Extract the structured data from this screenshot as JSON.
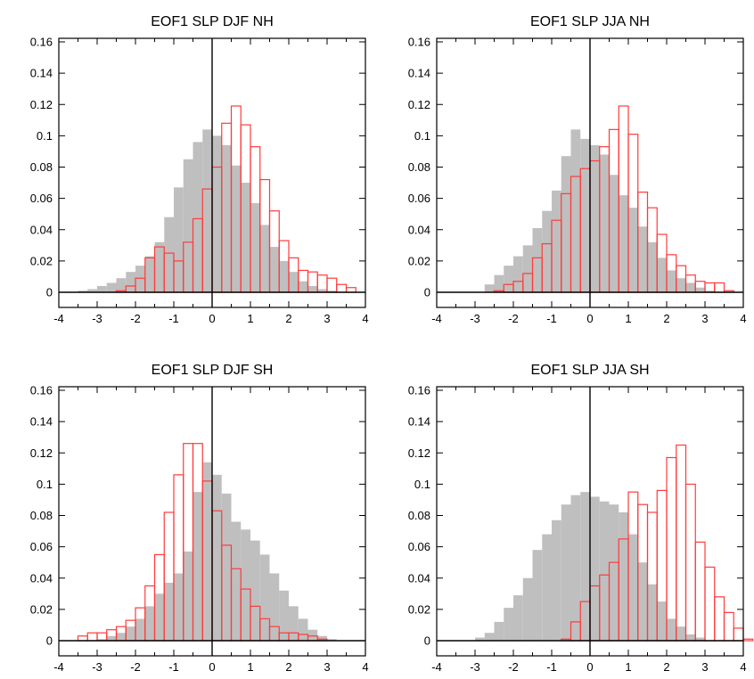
{
  "colors": {
    "shaded": "#bfbfbf",
    "outline": "#ff3b3b",
    "axis": "#000000"
  },
  "chart_data": [
    {
      "type": "bar",
      "title": "EOF1 SLP DJF NH",
      "xlim": [
        -4,
        4
      ],
      "ylim": [
        0,
        0.16
      ],
      "xticks": [
        -4,
        -3,
        -2,
        -1,
        0,
        1,
        2,
        3,
        4
      ],
      "yticks": [
        0,
        0.02,
        0.04,
        0.06,
        0.08,
        0.1,
        0.12,
        0.14,
        0.16
      ],
      "bin_width": 0.25,
      "series": [
        {
          "style": "filled-gray",
          "bins": [
            [
              -3.5,
              0.001
            ],
            [
              -3.25,
              0.002
            ],
            [
              -3.0,
              0.004
            ],
            [
              -2.75,
              0.006
            ],
            [
              -2.5,
              0.009
            ],
            [
              -2.25,
              0.013
            ],
            [
              -2.0,
              0.017
            ],
            [
              -1.75,
              0.023
            ],
            [
              -1.5,
              0.032
            ],
            [
              -1.25,
              0.048
            ],
            [
              -1.0,
              0.067
            ],
            [
              -0.75,
              0.085
            ],
            [
              -0.5,
              0.096
            ],
            [
              -0.25,
              0.104
            ],
            [
              0.0,
              0.1
            ],
            [
              0.25,
              0.094
            ],
            [
              0.5,
              0.081
            ],
            [
              0.75,
              0.07
            ],
            [
              1.0,
              0.057
            ],
            [
              1.25,
              0.043
            ],
            [
              1.5,
              0.029
            ],
            [
              1.75,
              0.02
            ],
            [
              2.0,
              0.013
            ],
            [
              2.25,
              0.007
            ],
            [
              2.5,
              0.004
            ],
            [
              2.75,
              0.002
            ],
            [
              3.0,
              0.001
            ]
          ]
        },
        {
          "style": "outline-red",
          "bins": [
            [
              -2.5,
              0.001
            ],
            [
              -2.25,
              0.004
            ],
            [
              -2.0,
              0.009
            ],
            [
              -1.75,
              0.022
            ],
            [
              -1.5,
              0.029
            ],
            [
              -1.25,
              0.025
            ],
            [
              -1.0,
              0.02
            ],
            [
              -0.75,
              0.032
            ],
            [
              -0.5,
              0.047
            ],
            [
              -0.25,
              0.066
            ],
            [
              0.0,
              0.08
            ],
            [
              0.25,
              0.108
            ],
            [
              0.5,
              0.119
            ],
            [
              0.75,
              0.107
            ],
            [
              1.0,
              0.093
            ],
            [
              1.25,
              0.072
            ],
            [
              1.5,
              0.052
            ],
            [
              1.75,
              0.033
            ],
            [
              2.0,
              0.022
            ],
            [
              2.25,
              0.014
            ],
            [
              2.5,
              0.013
            ],
            [
              2.75,
              0.011
            ],
            [
              3.0,
              0.009
            ],
            [
              3.25,
              0.005
            ],
            [
              3.5,
              0.003
            ]
          ]
        }
      ]
    },
    {
      "type": "bar",
      "title": "EOF1 SLP JJA NH",
      "xlim": [
        -4,
        4
      ],
      "ylim": [
        0,
        0.16
      ],
      "xticks": [
        -4,
        -3,
        -2,
        -1,
        0,
        1,
        2,
        3,
        4
      ],
      "yticks": [
        0,
        0.02,
        0.04,
        0.06,
        0.08,
        0.1,
        0.12,
        0.14,
        0.16
      ],
      "bin_width": 0.25,
      "series": [
        {
          "style": "filled-gray",
          "bins": [
            [
              -2.75,
              0.005
            ],
            [
              -2.5,
              0.011
            ],
            [
              -2.25,
              0.017
            ],
            [
              -2.0,
              0.023
            ],
            [
              -1.75,
              0.03
            ],
            [
              -1.5,
              0.041
            ],
            [
              -1.25,
              0.052
            ],
            [
              -1.0,
              0.065
            ],
            [
              -0.75,
              0.087
            ],
            [
              -0.5,
              0.104
            ],
            [
              -0.25,
              0.098
            ],
            [
              0.0,
              0.094
            ],
            [
              0.25,
              0.088
            ],
            [
              0.5,
              0.075
            ],
            [
              0.75,
              0.062
            ],
            [
              1.0,
              0.054
            ],
            [
              1.25,
              0.042
            ],
            [
              1.5,
              0.032
            ],
            [
              1.75,
              0.022
            ],
            [
              2.0,
              0.014
            ],
            [
              2.25,
              0.009
            ],
            [
              2.5,
              0.006
            ],
            [
              2.75,
              0.003
            ],
            [
              3.0,
              0.001
            ]
          ]
        },
        {
          "style": "outline-red",
          "bins": [
            [
              -2.5,
              0.001
            ],
            [
              -2.25,
              0.005
            ],
            [
              -2.0,
              0.007
            ],
            [
              -1.75,
              0.012
            ],
            [
              -1.5,
              0.022
            ],
            [
              -1.25,
              0.031
            ],
            [
              -1.0,
              0.046
            ],
            [
              -0.75,
              0.063
            ],
            [
              -0.5,
              0.074
            ],
            [
              -0.25,
              0.079
            ],
            [
              0.0,
              0.084
            ],
            [
              0.25,
              0.093
            ],
            [
              0.5,
              0.104
            ],
            [
              0.75,
              0.119
            ],
            [
              1.0,
              0.101
            ],
            [
              1.25,
              0.064
            ],
            [
              1.5,
              0.054
            ],
            [
              1.75,
              0.037
            ],
            [
              2.0,
              0.024
            ],
            [
              2.25,
              0.017
            ],
            [
              2.5,
              0.011
            ],
            [
              2.75,
              0.007
            ],
            [
              3.0,
              0.006
            ],
            [
              3.25,
              0.006
            ],
            [
              3.5,
              0.001
            ]
          ]
        }
      ]
    },
    {
      "type": "bar",
      "title": "EOF1 SLP DJF SH",
      "xlim": [
        -4,
        4
      ],
      "ylim": [
        0,
        0.16
      ],
      "xticks": [
        -4,
        -3,
        -2,
        -1,
        0,
        1,
        2,
        3,
        4
      ],
      "yticks": [
        0,
        0.02,
        0.04,
        0.06,
        0.08,
        0.1,
        0.12,
        0.14,
        0.16
      ],
      "bin_width": 0.25,
      "series": [
        {
          "style": "filled-gray",
          "bins": [
            [
              -3.0,
              0.001
            ],
            [
              -2.75,
              0.003
            ],
            [
              -2.5,
              0.005
            ],
            [
              -2.25,
              0.009
            ],
            [
              -2.0,
              0.014
            ],
            [
              -1.75,
              0.022
            ],
            [
              -1.5,
              0.03
            ],
            [
              -1.25,
              0.037
            ],
            [
              -1.0,
              0.043
            ],
            [
              -0.75,
              0.057
            ],
            [
              -0.5,
              0.095
            ],
            [
              -0.25,
              0.114
            ],
            [
              0.0,
              0.106
            ],
            [
              0.25,
              0.094
            ],
            [
              0.5,
              0.076
            ],
            [
              0.75,
              0.071
            ],
            [
              1.0,
              0.064
            ],
            [
              1.25,
              0.055
            ],
            [
              1.5,
              0.043
            ],
            [
              1.75,
              0.032
            ],
            [
              2.0,
              0.022
            ],
            [
              2.25,
              0.014
            ],
            [
              2.5,
              0.007
            ],
            [
              2.75,
              0.003
            ],
            [
              3.0,
              0.001
            ]
          ]
        },
        {
          "style": "outline-red",
          "bins": [
            [
              -3.5,
              0.003
            ],
            [
              -3.25,
              0.005
            ],
            [
              -3.0,
              0.005
            ],
            [
              -2.75,
              0.007
            ],
            [
              -2.5,
              0.009
            ],
            [
              -2.25,
              0.013
            ],
            [
              -2.0,
              0.021
            ],
            [
              -1.75,
              0.035
            ],
            [
              -1.5,
              0.055
            ],
            [
              -1.25,
              0.082
            ],
            [
              -1.0,
              0.106
            ],
            [
              -0.75,
              0.126
            ],
            [
              -0.5,
              0.126
            ],
            [
              -0.25,
              0.102
            ],
            [
              0.0,
              0.083
            ],
            [
              0.25,
              0.061
            ],
            [
              0.5,
              0.046
            ],
            [
              0.75,
              0.033
            ],
            [
              1.0,
              0.022
            ],
            [
              1.25,
              0.014
            ],
            [
              1.5,
              0.009
            ],
            [
              1.75,
              0.005
            ],
            [
              2.0,
              0.005
            ],
            [
              2.25,
              0.004
            ],
            [
              2.5,
              0.003
            ],
            [
              2.75,
              0.001
            ]
          ]
        }
      ]
    },
    {
      "type": "bar",
      "title": "EOF1 SLP JJA SH",
      "xlim": [
        -4,
        4
      ],
      "ylim": [
        0,
        0.16
      ],
      "xticks": [
        -4,
        -3,
        -2,
        -1,
        0,
        1,
        2,
        3,
        4
      ],
      "yticks": [
        0,
        0.02,
        0.04,
        0.06,
        0.08,
        0.1,
        0.12,
        0.14,
        0.16
      ],
      "bin_width": 0.25,
      "series": [
        {
          "style": "filled-gray",
          "bins": [
            [
              -3.0,
              0.002
            ],
            [
              -2.75,
              0.005
            ],
            [
              -2.5,
              0.012
            ],
            [
              -2.25,
              0.021
            ],
            [
              -2.0,
              0.029
            ],
            [
              -1.75,
              0.04
            ],
            [
              -1.5,
              0.058
            ],
            [
              -1.25,
              0.068
            ],
            [
              -1.0,
              0.077
            ],
            [
              -0.75,
              0.087
            ],
            [
              -0.5,
              0.093
            ],
            [
              -0.25,
              0.095
            ],
            [
              0.0,
              0.092
            ],
            [
              0.25,
              0.089
            ],
            [
              0.5,
              0.087
            ],
            [
              0.75,
              0.082
            ],
            [
              1.0,
              0.068
            ],
            [
              1.25,
              0.05
            ],
            [
              1.5,
              0.036
            ],
            [
              1.75,
              0.025
            ],
            [
              2.0,
              0.014
            ],
            [
              2.25,
              0.009
            ],
            [
              2.5,
              0.004
            ],
            [
              2.75,
              0.002
            ]
          ]
        },
        {
          "style": "outline-red",
          "bins": [
            [
              -0.75,
              0.001
            ],
            [
              -0.5,
              0.012
            ],
            [
              -0.25,
              0.025
            ],
            [
              0.0,
              0.035
            ],
            [
              0.25,
              0.042
            ],
            [
              0.5,
              0.05
            ],
            [
              0.75,
              0.065
            ],
            [
              1.0,
              0.095
            ],
            [
              1.25,
              0.087
            ],
            [
              1.5,
              0.082
            ],
            [
              1.75,
              0.096
            ],
            [
              2.0,
              0.117
            ],
            [
              2.25,
              0.125
            ],
            [
              2.5,
              0.1
            ],
            [
              2.75,
              0.063
            ],
            [
              3.0,
              0.047
            ],
            [
              3.25,
              0.028
            ],
            [
              3.5,
              0.018
            ],
            [
              3.75,
              0.008
            ],
            [
              4.0,
              0.001
            ]
          ]
        }
      ]
    }
  ]
}
